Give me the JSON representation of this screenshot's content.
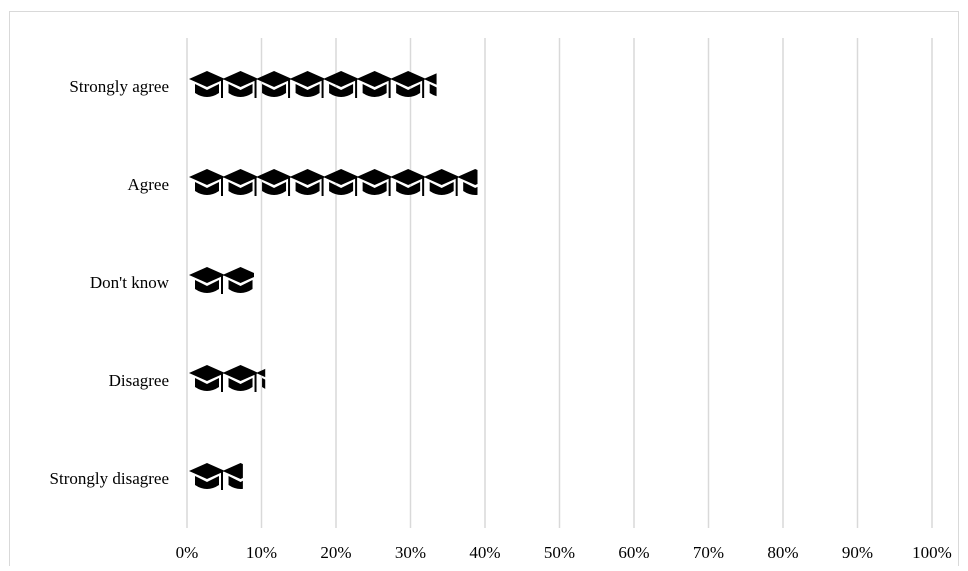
{
  "chart_data": {
    "type": "bar",
    "orientation": "horizontal",
    "pictogram_icon": "graduation-cap-icon",
    "pictogram_unit_percent": 4.5,
    "categories": [
      "Strongly agree",
      "Agree",
      "Don't know",
      "Disagree",
      "Strongly disagree"
    ],
    "values": [
      33.5,
      39,
      9,
      10.5,
      7.5
    ],
    "value_unit": "%",
    "xlim": [
      0,
      100
    ],
    "x_ticks": [
      "0%",
      "10%",
      "20%",
      "30%",
      "40%",
      "50%",
      "60%",
      "70%",
      "80%",
      "90%",
      "100%"
    ],
    "grid": true,
    "legend": "none",
    "title": "",
    "xlabel": "",
    "ylabel": "",
    "colors": {
      "icon": "#000000",
      "grid": "#d9d9d9",
      "text": "#000000"
    }
  }
}
